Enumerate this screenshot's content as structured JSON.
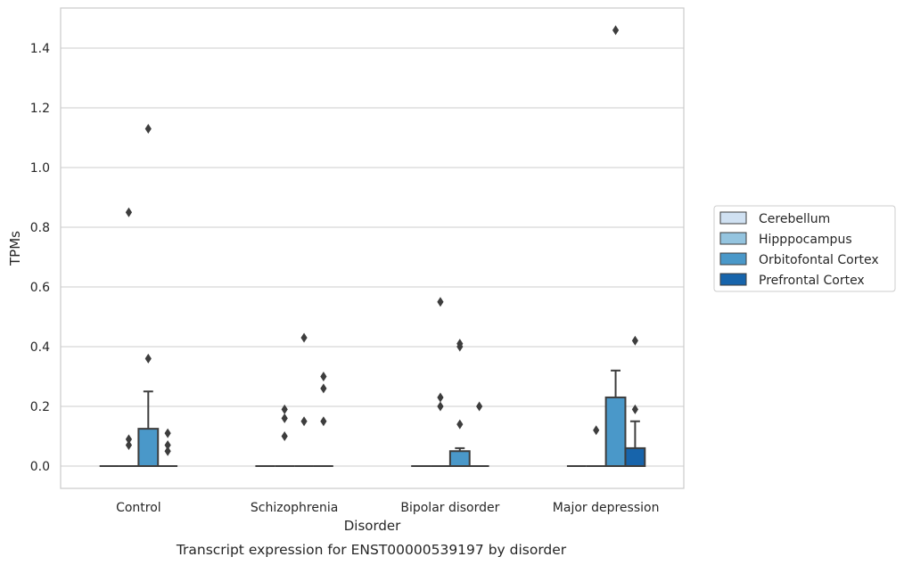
{
  "chart_data": {
    "type": "box",
    "caption": "Transcript expression for ENST00000539197 by disorder",
    "xlabel": "Disorder",
    "ylabel": "TPMs",
    "ylim": [
      -0.07,
      1.54
    ],
    "yticks": [
      "0.0",
      "0.2",
      "0.4",
      "0.6",
      "0.8",
      "1.0",
      "1.2",
      "1.4"
    ],
    "grid": "horizontal",
    "legend_position": "right",
    "categories": [
      "Control",
      "Schizophrenia",
      "Bipolar disorder",
      "Major depression"
    ],
    "series": [
      {
        "name": "Cerebellum",
        "color": "#d0e1f2",
        "boxes": [
          {
            "q1": 0,
            "median": 0,
            "q3": 0,
            "whisker_low": 0,
            "whisker_high": 0,
            "outliers": []
          },
          {
            "q1": 0,
            "median": 0,
            "q3": 0,
            "whisker_low": 0,
            "whisker_high": 0,
            "outliers": []
          },
          {
            "q1": 0,
            "median": 0,
            "q3": 0,
            "whisker_low": 0,
            "whisker_high": 0,
            "outliers": []
          },
          {
            "q1": 0,
            "median": 0,
            "q3": 0,
            "whisker_low": 0,
            "whisker_high": 0,
            "outliers": []
          }
        ]
      },
      {
        "name": "Hipppocampus",
        "color": "#94c4df",
        "boxes": [
          {
            "q1": 0,
            "median": 0,
            "q3": 0,
            "whisker_low": 0,
            "whisker_high": 0,
            "outliers": [
              0.85,
              0.09,
              0.07
            ]
          },
          {
            "q1": 0,
            "median": 0,
            "q3": 0,
            "whisker_low": 0,
            "whisker_high": 0,
            "outliers": [
              0.19,
              0.16,
              0.1
            ]
          },
          {
            "q1": 0,
            "median": 0,
            "q3": 0,
            "whisker_low": 0,
            "whisker_high": 0,
            "outliers": [
              0.55,
              0.23,
              0.2
            ]
          },
          {
            "q1": 0,
            "median": 0,
            "q3": 0,
            "whisker_low": 0,
            "whisker_high": 0,
            "outliers": [
              0.12
            ]
          }
        ]
      },
      {
        "name": "Orbitofontal Cortex",
        "color": "#4a98c9",
        "boxes": [
          {
            "q1": 0,
            "median": 0,
            "q3": 0.125,
            "whisker_low": 0,
            "whisker_high": 0.25,
            "outliers": [
              1.13,
              0.36
            ]
          },
          {
            "q1": 0,
            "median": 0,
            "q3": 0,
            "whisker_low": 0,
            "whisker_high": 0,
            "outliers": [
              0.43,
              0.15
            ]
          },
          {
            "q1": 0,
            "median": 0,
            "q3": 0.05,
            "whisker_low": 0,
            "whisker_high": 0.06,
            "outliers": [
              0.41,
              0.4,
              0.14
            ]
          },
          {
            "q1": 0,
            "median": 0,
            "q3": 0.23,
            "whisker_low": 0,
            "whisker_high": 0.32,
            "outliers": [
              1.46
            ]
          }
        ]
      },
      {
        "name": "Prefrontal Cortex",
        "color": "#1764ab",
        "boxes": [
          {
            "q1": 0,
            "median": 0,
            "q3": 0,
            "whisker_low": 0,
            "whisker_high": 0,
            "outliers": [
              0.11,
              0.07,
              0.05
            ]
          },
          {
            "q1": 0,
            "median": 0,
            "q3": 0,
            "whisker_low": 0,
            "whisker_high": 0,
            "outliers": [
              0.3,
              0.26,
              0.15
            ]
          },
          {
            "q1": 0,
            "median": 0,
            "q3": 0,
            "whisker_low": 0,
            "whisker_high": 0,
            "outliers": [
              0.2
            ]
          },
          {
            "q1": 0,
            "median": 0,
            "q3": 0.06,
            "whisker_low": 0,
            "whisker_high": 0.15,
            "outliers": [
              0.42,
              0.19
            ]
          }
        ]
      }
    ]
  }
}
